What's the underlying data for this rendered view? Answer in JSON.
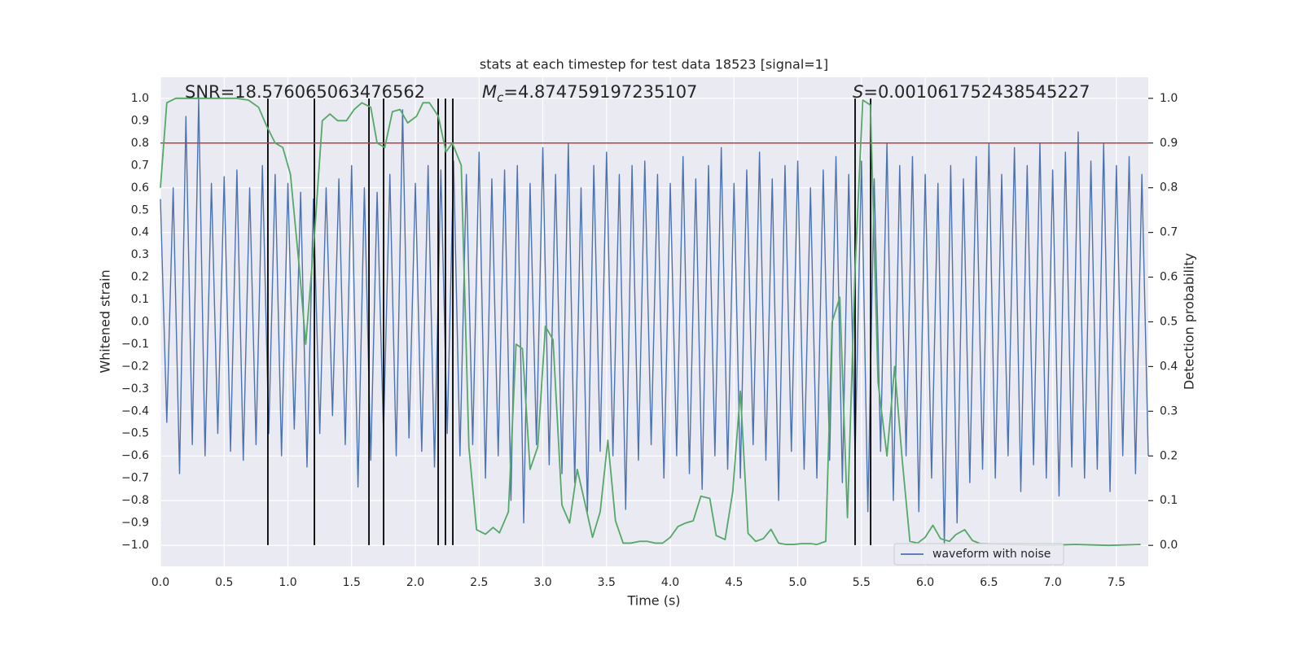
{
  "chart_data": {
    "type": "line",
    "title": "stats at each timestep for test data 18523 [signal=1]",
    "xlabel": "Time (s)",
    "ylabel": "Whitened strain",
    "y2label": "Detection probability",
    "xlim": [
      0,
      7.75
    ],
    "ylim": [
      -1.095,
      1.095
    ],
    "y2lim": [
      -0.047,
      1.047
    ],
    "xticks": [
      {
        "value": 0,
        "label": "0.0"
      },
      0.5,
      {
        "value": 1,
        "label": "1.0"
      },
      1.5,
      {
        "value": 2,
        "label": "2.0"
      },
      2.5,
      {
        "value": 3,
        "label": "3.0"
      },
      3.5,
      {
        "value": 4,
        "label": "4.0"
      },
      4.5,
      {
        "value": 5,
        "label": "5.0"
      },
      5.5,
      {
        "value": 6,
        "label": "6.0"
      },
      6.5,
      {
        "value": 7,
        "label": "7.0"
      },
      7.5
    ],
    "yticks": [
      {
        "value": 1,
        "label": "1.0"
      },
      0.9,
      0.8,
      0.7,
      0.6,
      0.5,
      0.4,
      0.3,
      0.2,
      0.1,
      {
        "value": 0,
        "label": "0.0"
      },
      {
        "value": -0.1,
        "label": "−0.1"
      },
      {
        "value": -0.2,
        "label": "−0.2"
      },
      {
        "value": -0.3,
        "label": "−0.3"
      },
      {
        "value": -0.4,
        "label": "−0.4"
      },
      {
        "value": -0.5,
        "label": "−0.5"
      },
      {
        "value": -0.6,
        "label": "−0.6"
      },
      {
        "value": -0.7,
        "label": "−0.7"
      },
      {
        "value": -0.8,
        "label": "−0.8"
      },
      {
        "value": -0.9,
        "label": "−0.9"
      },
      {
        "value": -1,
        "label": "−1.0"
      }
    ],
    "y2ticks": [
      {
        "value": 0,
        "label": "0.0"
      },
      0.1,
      0.2,
      0.3,
      0.4,
      0.5,
      0.6,
      0.7,
      0.8,
      0.9,
      {
        "value": 1,
        "label": "1.0"
      }
    ],
    "grid": true,
    "legend": "best",
    "series": [
      {
        "name": "waveform with noise",
        "color": "#4c72b0",
        "x": [
          0,
          0.05,
          0.1,
          0.15,
          0.2,
          0.25,
          0.3,
          0.35,
          0.4,
          0.45,
          0.5,
          0.55,
          0.6,
          0.65,
          0.7,
          0.75,
          0.8,
          0.85,
          0.9,
          0.95,
          1,
          1.05,
          1.1,
          1.15,
          1.2,
          1.25,
          1.3,
          1.35,
          1.4,
          1.45,
          1.5,
          1.55,
          1.6,
          1.65,
          1.7,
          1.75,
          1.8,
          1.85,
          1.9,
          1.95,
          2,
          2.05,
          2.1,
          2.15,
          2.2,
          2.25,
          2.3,
          2.35,
          2.4,
          2.45,
          2.5,
          2.55,
          2.6,
          2.65,
          2.7,
          2.75,
          2.8,
          2.85,
          2.9,
          2.95,
          3,
          3.05,
          3.1,
          3.15,
          3.2,
          3.25,
          3.3,
          3.35,
          3.4,
          3.45,
          3.5,
          3.55,
          3.6,
          3.65,
          3.7,
          3.75,
          3.8,
          3.85,
          3.9,
          3.95,
          4,
          4.05,
          4.1,
          4.15,
          4.2,
          4.25,
          4.3,
          4.35,
          4.4,
          4.45,
          4.5,
          4.55,
          4.6,
          4.65,
          4.7,
          4.75,
          4.8,
          4.85,
          4.9,
          4.95,
          5,
          5.05,
          5.1,
          5.15,
          5.2,
          5.25,
          5.3,
          5.35,
          5.4,
          5.45,
          5.5,
          5.55,
          5.6,
          5.65,
          5.7,
          5.75,
          5.8,
          5.85,
          5.9,
          5.95,
          6,
          6.05,
          6.1,
          6.15,
          6.2,
          6.25,
          6.3,
          6.35,
          6.4,
          6.45,
          6.5,
          6.55,
          6.6,
          6.65,
          6.7,
          6.75,
          6.8,
          6.85,
          6.9,
          6.95,
          7,
          7.05,
          7.1,
          7.15,
          7.2,
          7.25,
          7.3,
          7.35,
          7.4,
          7.45,
          7.5,
          7.55,
          7.6,
          7.65,
          7.7,
          7.75
        ],
        "values": [
          0.55,
          -0.45,
          0.6,
          -0.68,
          0.92,
          -0.55,
          1.0,
          -0.6,
          0.62,
          -0.5,
          0.65,
          -0.58,
          0.68,
          -0.62,
          0.6,
          -0.55,
          0.7,
          -0.5,
          0.66,
          -0.6,
          0.62,
          -0.48,
          0.58,
          -0.65,
          0.55,
          -0.5,
          0.6,
          -0.42,
          0.64,
          -0.55,
          0.7,
          -0.74,
          0.6,
          -0.62,
          0.58,
          -0.5,
          0.66,
          -0.6,
          0.95,
          -0.52,
          0.62,
          -0.58,
          0.7,
          -0.65,
          0.68,
          -0.5,
          0.72,
          -0.6,
          0.66,
          -0.55,
          0.76,
          -0.7,
          0.64,
          -0.6,
          0.68,
          -0.8,
          0.7,
          -0.9,
          0.62,
          -0.55,
          0.78,
          -0.64,
          0.66,
          -0.68,
          0.8,
          -0.72,
          0.6,
          -0.85,
          0.7,
          -0.58,
          0.76,
          -0.6,
          0.66,
          -0.84,
          0.7,
          -0.62,
          0.72,
          -0.55,
          0.66,
          -0.7,
          0.62,
          -0.6,
          0.74,
          -0.68,
          0.64,
          -0.75,
          0.7,
          -0.6,
          0.78,
          -0.66,
          0.62,
          -0.7,
          0.68,
          -0.55,
          0.76,
          -0.62,
          0.64,
          -0.8,
          0.7,
          -0.58,
          0.72,
          -0.66,
          0.6,
          -0.7,
          0.68,
          -0.62,
          0.74,
          -0.72,
          0.66,
          -0.6,
          0.72,
          -0.85,
          0.64,
          -0.58,
          0.8,
          -0.8,
          0.7,
          -0.6,
          0.74,
          -0.85,
          0.66,
          -0.7,
          0.62,
          -1.0,
          0.7,
          -0.9,
          0.64,
          -0.72,
          0.74,
          -0.66,
          0.8,
          -0.7,
          0.66,
          -0.6,
          0.78,
          -0.76,
          0.7,
          -0.64,
          0.8,
          -0.7,
          0.68,
          -0.78,
          0.76,
          -0.65,
          0.85,
          -0.7,
          0.72,
          -0.66,
          0.8,
          -0.76,
          0.7,
          -0.6,
          0.74,
          -0.68,
          0.66,
          -0.6
        ]
      },
      {
        "color": "#55a868",
        "axis": "y2",
        "x": [
          0,
          0.05,
          0.12,
          0.6,
          0.69,
          0.77,
          0.83,
          0.9,
          0.96,
          1.02,
          1.09,
          1.14,
          1.21,
          1.27,
          1.33,
          1.39,
          1.46,
          1.52,
          1.58,
          1.65,
          1.7,
          1.76,
          1.82,
          1.88,
          1.94,
          2.01,
          2.06,
          2.11,
          2.18,
          2.24,
          2.29,
          2.36,
          2.42,
          2.48,
          2.55,
          2.61,
          2.66,
          2.73,
          2.79,
          2.84,
          2.9,
          2.96,
          3.02,
          3.08,
          3.15,
          3.21,
          3.27,
          3.33,
          3.39,
          3.45,
          3.51,
          3.57,
          3.63,
          3.69,
          3.76,
          3.82,
          3.88,
          3.94,
          4.0,
          4.06,
          4.12,
          4.18,
          4.24,
          4.31,
          4.36,
          4.43,
          4.49,
          4.55,
          4.61,
          4.67,
          4.73,
          4.79,
          4.85,
          4.91,
          4.97,
          5.03,
          5.1,
          5.15,
          5.22,
          5.27,
          5.33,
          5.39,
          5.45,
          5.51,
          5.57,
          5.63,
          5.7,
          5.76,
          5.82,
          5.88,
          5.94,
          6.0,
          6.06,
          6.12,
          6.19,
          6.24,
          6.31,
          6.37,
          6.43,
          6.66,
          6.92,
          7.18,
          7.44,
          7.69
        ],
        "values": [
          0.8,
          0.99,
          1.0,
          1.0,
          0.996,
          0.98,
          0.94,
          0.9,
          0.89,
          0.83,
          0.62,
          0.45,
          0.7,
          0.95,
          0.965,
          0.95,
          0.95,
          0.975,
          0.99,
          0.98,
          0.9,
          0.89,
          0.97,
          0.975,
          0.945,
          0.96,
          0.99,
          0.99,
          0.96,
          0.88,
          0.9,
          0.85,
          0.22,
          0.035,
          0.025,
          0.04,
          0.028,
          0.075,
          0.45,
          0.44,
          0.17,
          0.22,
          0.49,
          0.46,
          0.09,
          0.05,
          0.17,
          0.095,
          0.018,
          0.075,
          0.235,
          0.055,
          0.005,
          0.005,
          0.009,
          0.009,
          0.005,
          0.005,
          0.018,
          0.042,
          0.05,
          0.055,
          0.11,
          0.105,
          0.022,
          0.013,
          0.12,
          0.345,
          0.027,
          0.009,
          0.015,
          0.036,
          0.005,
          0.002,
          0.002,
          0.004,
          0.004,
          0.002,
          0.009,
          0.5,
          0.555,
          0.062,
          0.62,
          0.996,
          0.985,
          0.365,
          0.2,
          0.4,
          0.19,
          0.009,
          0.005,
          0.018,
          0.045,
          0.015,
          0.009,
          0.024,
          0.035,
          0.011,
          0.004,
          0.002,
          0,
          0.002,
          0,
          0.002
        ]
      }
    ],
    "vlines": {
      "x": [
        0.843,
        1.208,
        1.636,
        1.751,
        2.179,
        2.236,
        2.294,
        5.45,
        5.572
      ],
      "ymin": -1,
      "ymax": 1,
      "color": "#000000"
    },
    "hline": {
      "y": 0.9,
      "axis": "y2",
      "color": "#c03d3e"
    },
    "annotations": [
      {
        "text": "SNR=18.576065063476562"
      },
      {
        "symbol": "M",
        "subscript": "c",
        "text": "=4.874759197235107"
      },
      {
        "symbol": "S",
        "text": "=0.001061752438545227"
      }
    ]
  }
}
